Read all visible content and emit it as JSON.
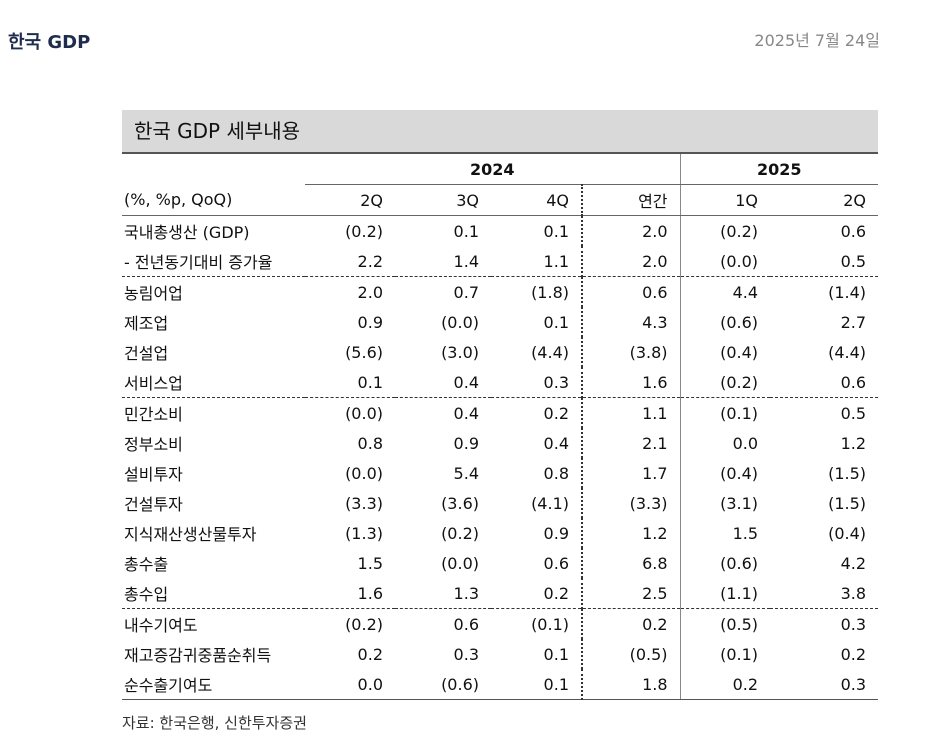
{
  "header": {
    "title": "한국 GDP",
    "date": "2025년 7월 24일"
  },
  "table": {
    "title": "한국 GDP 세부내용",
    "year_headers": [
      "2024",
      "2025"
    ],
    "unit_label": "(%, %p, QoQ)",
    "columns": [
      "2Q",
      "3Q",
      "4Q",
      "연간",
      "1Q",
      "2Q"
    ],
    "rows": [
      {
        "label": "국내총생산 (GDP)",
        "values": [
          "(0.2)",
          "0.1",
          "0.1",
          "2.0",
          "(0.2)",
          "0.6"
        ]
      },
      {
        "label": "- 전년동기대비 증가율",
        "values": [
          "2.2",
          "1.4",
          "1.1",
          "2.0",
          "(0.0)",
          "0.5"
        ]
      },
      {
        "label": "농림어업",
        "values": [
          "2.0",
          "0.7",
          "(1.8)",
          "0.6",
          "4.4",
          "(1.4)"
        ]
      },
      {
        "label": "제조업",
        "values": [
          "0.9",
          "(0.0)",
          "0.1",
          "4.3",
          "(0.6)",
          "2.7"
        ]
      },
      {
        "label": "건설업",
        "values": [
          "(5.6)",
          "(3.0)",
          "(4.4)",
          "(3.8)",
          "(0.4)",
          "(4.4)"
        ]
      },
      {
        "label": "서비스업",
        "values": [
          "0.1",
          "0.4",
          "0.3",
          "1.6",
          "(0.2)",
          "0.6"
        ]
      },
      {
        "label": "민간소비",
        "values": [
          "(0.0)",
          "0.4",
          "0.2",
          "1.1",
          "(0.1)",
          "0.5"
        ]
      },
      {
        "label": "정부소비",
        "values": [
          "0.8",
          "0.9",
          "0.4",
          "2.1",
          "0.0",
          "1.2"
        ]
      },
      {
        "label": "설비투자",
        "values": [
          "(0.0)",
          "5.4",
          "0.8",
          "1.7",
          "(0.4)",
          "(1.5)"
        ]
      },
      {
        "label": "건설투자",
        "values": [
          "(3.3)",
          "(3.6)",
          "(4.1)",
          "(3.3)",
          "(3.1)",
          "(1.5)"
        ]
      },
      {
        "label": "지식재산생산물투자",
        "values": [
          "(1.3)",
          "(0.2)",
          "0.9",
          "1.2",
          "1.5",
          "(0.4)"
        ]
      },
      {
        "label": "총수출",
        "values": [
          "1.5",
          "(0.0)",
          "0.6",
          "6.8",
          "(0.6)",
          "4.2"
        ]
      },
      {
        "label": "총수입",
        "values": [
          "1.6",
          "1.3",
          "0.2",
          "2.5",
          "(1.1)",
          "3.8"
        ]
      },
      {
        "label": "내수기여도",
        "values": [
          "(0.2)",
          "0.6",
          "(0.1)",
          "0.2",
          "(0.5)",
          "0.3"
        ]
      },
      {
        "label": "재고증감귀중품순취득",
        "values": [
          "0.2",
          "0.3",
          "0.1",
          "(0.5)",
          "(0.1)",
          "0.2"
        ]
      },
      {
        "label": "순수출기여도",
        "values": [
          "0.0",
          "(0.6)",
          "0.1",
          "1.8",
          "0.2",
          "0.3"
        ]
      }
    ],
    "source": "자료: 한국은행, 신한투자증권"
  }
}
